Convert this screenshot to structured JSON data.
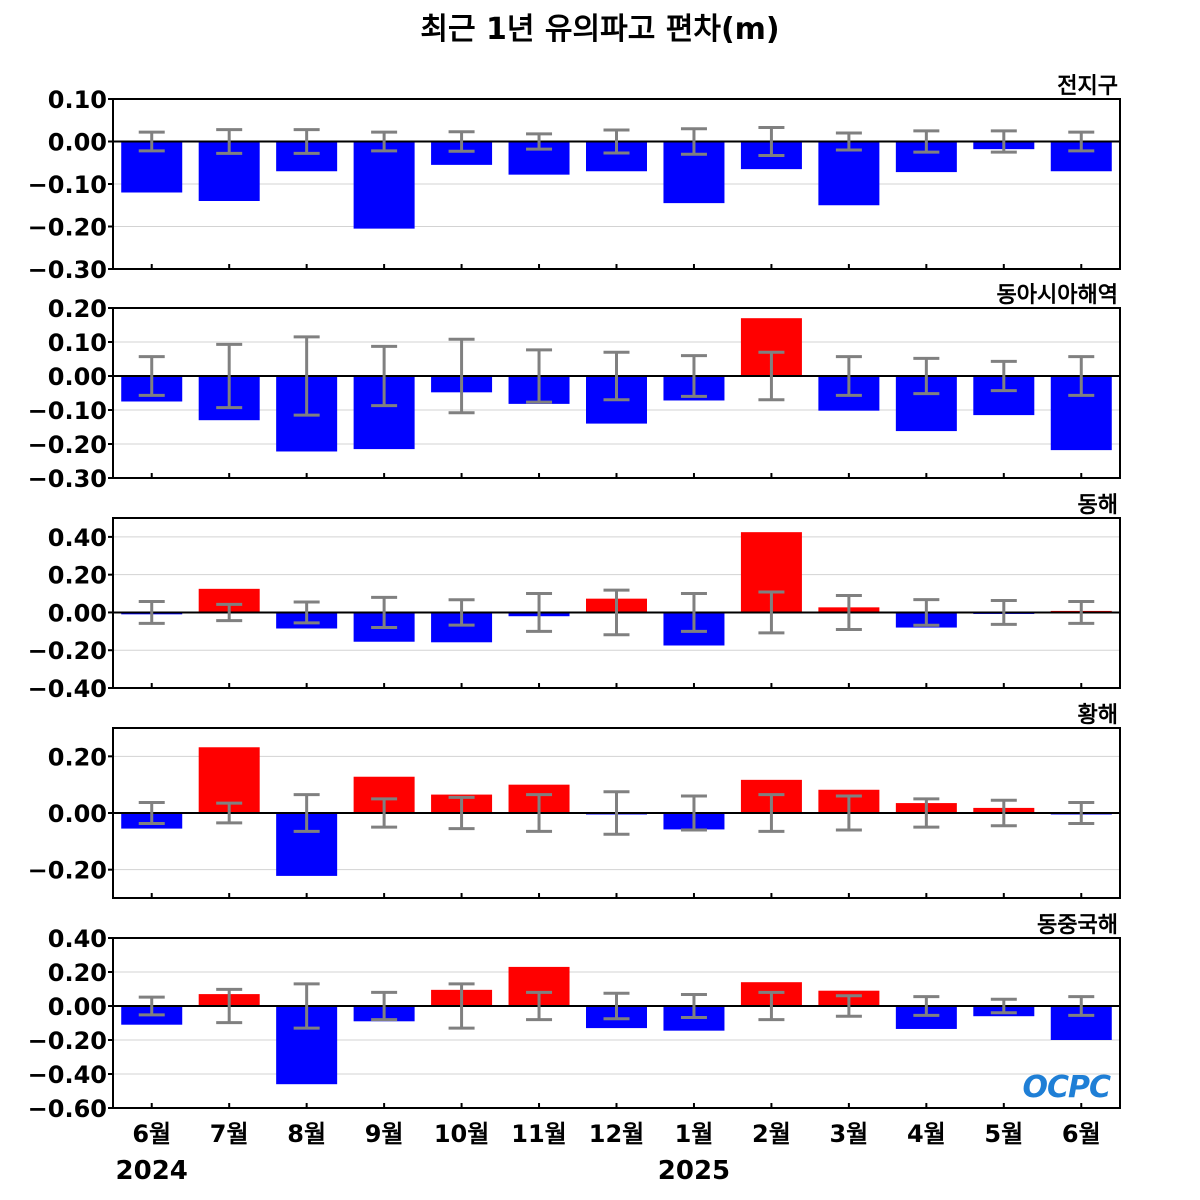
{
  "title": "최근 1년 유의파고 편차(m)",
  "logo_text": "OCPC",
  "chart_data": {
    "type": "bar",
    "categories": [
      "6월",
      "7월",
      "8월",
      "9월",
      "10월",
      "11월",
      "12월",
      "1월",
      "2월",
      "3월",
      "4월",
      "5월",
      "6월"
    ],
    "year_labels": [
      {
        "text": "2024",
        "category_index": 0
      },
      {
        "text": "2025",
        "category_index": 7
      }
    ],
    "colors": {
      "positive": "#ff0000",
      "negative": "#0000ff",
      "error_bar": "#808080",
      "zero_line": "#000000",
      "grid": "#d3d3d3"
    },
    "grid": true,
    "panels": [
      {
        "name": "전지구",
        "ylim": [
          -0.3,
          0.1
        ],
        "yticks": [
          "0.10",
          "0.00",
          "−0.10",
          "−0.20",
          "−0.30"
        ],
        "ytick_values": [
          0.1,
          0.0,
          -0.1,
          -0.2,
          -0.3
        ],
        "values": [
          -0.12,
          -0.14,
          -0.07,
          -0.205,
          -0.055,
          -0.078,
          -0.07,
          -0.145,
          -0.065,
          -0.15,
          -0.072,
          -0.018,
          -0.07
        ],
        "errors": [
          0.022,
          0.028,
          0.028,
          0.022,
          0.023,
          0.018,
          0.027,
          0.03,
          0.033,
          0.02,
          0.025,
          0.025,
          0.022
        ]
      },
      {
        "name": "동아시아해역",
        "ylim": [
          -0.3,
          0.2
        ],
        "yticks": [
          "0.20",
          "0.10",
          "0.00",
          "−0.10",
          "−0.20",
          "−0.30"
        ],
        "ytick_values": [
          0.2,
          0.1,
          0.0,
          -0.1,
          -0.2,
          -0.3
        ],
        "values": [
          -0.075,
          -0.13,
          -0.222,
          -0.215,
          -0.048,
          -0.082,
          -0.14,
          -0.072,
          0.17,
          -0.102,
          -0.162,
          -0.115,
          -0.218
        ],
        "errors": [
          0.057,
          0.093,
          0.115,
          0.087,
          0.108,
          0.077,
          0.07,
          0.06,
          0.07,
          0.057,
          0.052,
          0.043,
          0.057
        ]
      },
      {
        "name": "동해",
        "ylim": [
          -0.4,
          0.5
        ],
        "yticks": [
          "0.40",
          "0.20",
          "0.00",
          "−0.20",
          "−0.40"
        ],
        "ytick_values": [
          0.4,
          0.2,
          0.0,
          -0.2,
          -0.4
        ],
        "values": [
          -0.01,
          0.125,
          -0.085,
          -0.155,
          -0.158,
          -0.02,
          0.073,
          -0.175,
          0.425,
          0.027,
          -0.08,
          -0.008,
          0.008
        ],
        "errors": [
          0.058,
          0.043,
          0.055,
          0.08,
          0.067,
          0.1,
          0.118,
          0.1,
          0.108,
          0.09,
          0.068,
          0.063,
          0.058
        ]
      },
      {
        "name": "황해",
        "ylim": [
          -0.3,
          0.3
        ],
        "yticks": [
          "0.20",
          "0.00",
          "−0.20"
        ],
        "ytick_values": [
          0.2,
          0.0,
          -0.2
        ],
        "values": [
          -0.055,
          0.232,
          -0.222,
          0.128,
          0.065,
          0.1,
          -0.005,
          -0.058,
          0.117,
          0.082,
          0.035,
          0.018,
          -0.003
        ],
        "errors": [
          0.037,
          0.035,
          0.065,
          0.05,
          0.055,
          0.065,
          0.075,
          0.06,
          0.065,
          0.06,
          0.05,
          0.045,
          0.037
        ]
      },
      {
        "name": "동중국해",
        "ylim": [
          -0.6,
          0.4
        ],
        "yticks": [
          "0.40",
          "0.20",
          "0.00",
          "−0.20",
          "−0.40",
          "−0.60"
        ],
        "ytick_values": [
          0.4,
          0.2,
          0.0,
          -0.2,
          -0.4,
          -0.6
        ],
        "values": [
          -0.11,
          0.07,
          -0.46,
          -0.09,
          0.095,
          0.23,
          -0.13,
          -0.145,
          0.14,
          0.09,
          -0.135,
          -0.06,
          -0.2
        ],
        "errors": [
          0.052,
          0.098,
          0.13,
          0.08,
          0.13,
          0.08,
          0.075,
          0.068,
          0.08,
          0.06,
          0.055,
          0.04,
          0.055
        ]
      }
    ]
  }
}
